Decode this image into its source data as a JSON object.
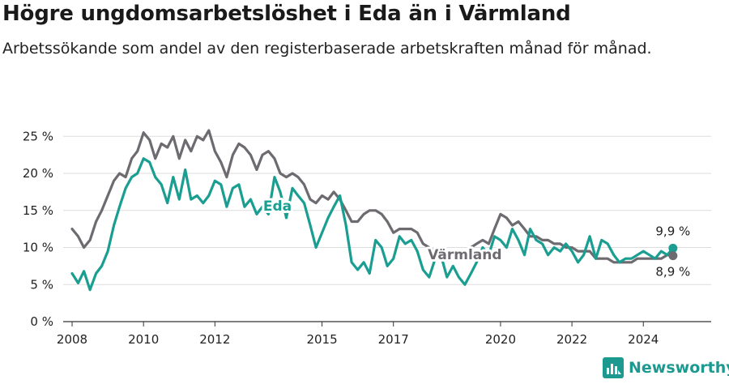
{
  "title": "Högre ungdomsarbetslöshet i Eda än i Värmland",
  "subtitle": "Arbetssökande som andel av den registerbaserade arbetskraften månad för månad.",
  "brand": {
    "name": "Newsworthy",
    "icon": "newsworthy-logo-icon"
  },
  "colors": {
    "Eda": "#1a9e91",
    "Värmland": "#6d6a70",
    "grid": "#dddddd"
  },
  "chart_data": {
    "type": "line",
    "ylim": [
      0,
      27
    ],
    "yticks": [
      0,
      5,
      10,
      15,
      20,
      25
    ],
    "ytick_labels": [
      "0 %",
      "5 %",
      "10 %",
      "15 %",
      "20 %",
      "25 %"
    ],
    "xlim": [
      2007.75,
      2025.9
    ],
    "xticks": [
      2008,
      2010,
      2012,
      2015,
      2017,
      2020,
      2022,
      2024
    ],
    "grid": true,
    "legend": "inline labels",
    "series": [
      {
        "name": "Eda",
        "label": "Eda",
        "end_label": "9,9 %",
        "points": [
          [
            2008.0,
            6.5
          ],
          [
            2008.17,
            5.2
          ],
          [
            2008.33,
            6.8
          ],
          [
            2008.5,
            4.3
          ],
          [
            2008.67,
            6.5
          ],
          [
            2008.83,
            7.5
          ],
          [
            2009.0,
            9.5
          ],
          [
            2009.17,
            13
          ],
          [
            2009.33,
            15.5
          ],
          [
            2009.5,
            18
          ],
          [
            2009.67,
            19.5
          ],
          [
            2009.83,
            20
          ],
          [
            2010.0,
            22
          ],
          [
            2010.17,
            21.5
          ],
          [
            2010.33,
            19.5
          ],
          [
            2010.5,
            18.5
          ],
          [
            2010.67,
            16
          ],
          [
            2010.83,
            19.5
          ],
          [
            2011.0,
            16.5
          ],
          [
            2011.17,
            20.5
          ],
          [
            2011.33,
            16.5
          ],
          [
            2011.5,
            17
          ],
          [
            2011.67,
            16
          ],
          [
            2011.83,
            17
          ],
          [
            2012.0,
            19
          ],
          [
            2012.17,
            18.5
          ],
          [
            2012.33,
            15.5
          ],
          [
            2012.5,
            18
          ],
          [
            2012.67,
            18.5
          ],
          [
            2012.83,
            15.5
          ],
          [
            2013.0,
            16.5
          ],
          [
            2013.17,
            14.5
          ],
          [
            2013.33,
            15.5
          ],
          [
            2013.5,
            14.5
          ],
          [
            2013.67,
            19.5
          ],
          [
            2013.83,
            17.5
          ],
          [
            2014.0,
            14
          ],
          [
            2014.17,
            18
          ],
          [
            2014.33,
            17
          ],
          [
            2014.5,
            16
          ],
          [
            2014.67,
            13
          ],
          [
            2014.83,
            10
          ],
          [
            2015.0,
            12
          ],
          [
            2015.17,
            14
          ],
          [
            2015.33,
            15.5
          ],
          [
            2015.5,
            17
          ],
          [
            2015.67,
            13
          ],
          [
            2015.83,
            8
          ],
          [
            2016.0,
            7
          ],
          [
            2016.17,
            8
          ],
          [
            2016.33,
            6.5
          ],
          [
            2016.5,
            11
          ],
          [
            2016.67,
            10
          ],
          [
            2016.83,
            7.5
          ],
          [
            2017.0,
            8.5
          ],
          [
            2017.17,
            11.5
          ],
          [
            2017.33,
            10.5
          ],
          [
            2017.5,
            11
          ],
          [
            2017.67,
            9.5
          ],
          [
            2017.83,
            7
          ],
          [
            2018.0,
            6
          ],
          [
            2018.17,
            8.5
          ],
          [
            2018.33,
            9
          ],
          [
            2018.5,
            6
          ],
          [
            2018.67,
            7.5
          ],
          [
            2018.83,
            6
          ],
          [
            2019.0,
            5
          ],
          [
            2019.17,
            6.5
          ],
          [
            2019.33,
            8
          ],
          [
            2019.5,
            10
          ],
          [
            2019.67,
            9
          ],
          [
            2019.83,
            11.5
          ],
          [
            2020.0,
            11
          ],
          [
            2020.17,
            10
          ],
          [
            2020.33,
            12.5
          ],
          [
            2020.5,
            11
          ],
          [
            2020.67,
            9
          ],
          [
            2020.83,
            12.5
          ],
          [
            2021.0,
            11
          ],
          [
            2021.17,
            10.5
          ],
          [
            2021.33,
            9
          ],
          [
            2021.5,
            10
          ],
          [
            2021.67,
            9.5
          ],
          [
            2021.83,
            10.5
          ],
          [
            2022.0,
            9.5
          ],
          [
            2022.17,
            8
          ],
          [
            2022.33,
            9
          ],
          [
            2022.5,
            11.5
          ],
          [
            2022.67,
            8.5
          ],
          [
            2022.83,
            11
          ],
          [
            2023.0,
            10.5
          ],
          [
            2023.17,
            9
          ],
          [
            2023.33,
            8
          ],
          [
            2023.5,
            8.5
          ],
          [
            2023.67,
            8.5
          ],
          [
            2023.83,
            9
          ],
          [
            2024.0,
            9.5
          ],
          [
            2024.17,
            9
          ],
          [
            2024.33,
            8.5
          ],
          [
            2024.5,
            9.5
          ],
          [
            2024.67,
            9
          ],
          [
            2024.83,
            9.9
          ]
        ]
      },
      {
        "name": "Värmland",
        "label": "Värmland",
        "end_label": "8,9 %",
        "points": [
          [
            2008.0,
            12.5
          ],
          [
            2008.17,
            11.5
          ],
          [
            2008.33,
            10
          ],
          [
            2008.5,
            11
          ],
          [
            2008.67,
            13.5
          ],
          [
            2008.83,
            15
          ],
          [
            2009.0,
            17
          ],
          [
            2009.17,
            19
          ],
          [
            2009.33,
            20
          ],
          [
            2009.5,
            19.5
          ],
          [
            2009.67,
            22
          ],
          [
            2009.83,
            23
          ],
          [
            2010.0,
            25.5
          ],
          [
            2010.17,
            24.5
          ],
          [
            2010.33,
            22
          ],
          [
            2010.5,
            24
          ],
          [
            2010.67,
            23.5
          ],
          [
            2010.83,
            25
          ],
          [
            2011.0,
            22
          ],
          [
            2011.17,
            24.5
          ],
          [
            2011.33,
            23
          ],
          [
            2011.5,
            25
          ],
          [
            2011.67,
            24.5
          ],
          [
            2011.83,
            25.8
          ],
          [
            2012.0,
            23
          ],
          [
            2012.17,
            21.5
          ],
          [
            2012.33,
            19.5
          ],
          [
            2012.5,
            22.5
          ],
          [
            2012.67,
            24
          ],
          [
            2012.83,
            23.5
          ],
          [
            2013.0,
            22.5
          ],
          [
            2013.17,
            20.5
          ],
          [
            2013.33,
            22.5
          ],
          [
            2013.5,
            23
          ],
          [
            2013.67,
            22
          ],
          [
            2013.83,
            20
          ],
          [
            2014.0,
            19.5
          ],
          [
            2014.17,
            20
          ],
          [
            2014.33,
            19.5
          ],
          [
            2014.5,
            18.5
          ],
          [
            2014.67,
            16.5
          ],
          [
            2014.83,
            16
          ],
          [
            2015.0,
            17
          ],
          [
            2015.17,
            16.5
          ],
          [
            2015.33,
            17.5
          ],
          [
            2015.5,
            16.5
          ],
          [
            2015.67,
            15
          ],
          [
            2015.83,
            13.5
          ],
          [
            2016.0,
            13.5
          ],
          [
            2016.17,
            14.5
          ],
          [
            2016.33,
            15
          ],
          [
            2016.5,
            15
          ],
          [
            2016.67,
            14.5
          ],
          [
            2016.83,
            13.5
          ],
          [
            2017.0,
            12
          ],
          [
            2017.17,
            12.5
          ],
          [
            2017.33,
            12.5
          ],
          [
            2017.5,
            12.5
          ],
          [
            2017.67,
            12
          ],
          [
            2017.83,
            10.5
          ],
          [
            2018.0,
            10
          ],
          [
            2018.17,
            9.5
          ],
          [
            2018.33,
            9.5
          ],
          [
            2018.5,
            8.5
          ],
          [
            2018.67,
            9
          ],
          [
            2018.83,
            9
          ],
          [
            2019.0,
            8.5
          ],
          [
            2019.17,
            10
          ],
          [
            2019.33,
            10.5
          ],
          [
            2019.5,
            11
          ],
          [
            2019.67,
            10.5
          ],
          [
            2019.83,
            12.5
          ],
          [
            2020.0,
            14.5
          ],
          [
            2020.17,
            14
          ],
          [
            2020.33,
            13
          ],
          [
            2020.5,
            13.5
          ],
          [
            2020.67,
            12.5
          ],
          [
            2020.83,
            11.5
          ],
          [
            2021.0,
            11.5
          ],
          [
            2021.17,
            11
          ],
          [
            2021.33,
            11
          ],
          [
            2021.5,
            10.5
          ],
          [
            2021.67,
            10.5
          ],
          [
            2021.83,
            10
          ],
          [
            2022.0,
            10
          ],
          [
            2022.17,
            9.5
          ],
          [
            2022.33,
            9.5
          ],
          [
            2022.5,
            9.5
          ],
          [
            2022.67,
            8.5
          ],
          [
            2022.83,
            8.5
          ],
          [
            2023.0,
            8.5
          ],
          [
            2023.17,
            8
          ],
          [
            2023.33,
            8
          ],
          [
            2023.5,
            8
          ],
          [
            2023.67,
            8
          ],
          [
            2023.83,
            8.5
          ],
          [
            2024.0,
            8.5
          ],
          [
            2024.17,
            8.5
          ],
          [
            2024.33,
            8.5
          ],
          [
            2024.5,
            8.5
          ],
          [
            2024.67,
            9
          ],
          [
            2024.83,
            8.9
          ]
        ]
      }
    ]
  }
}
